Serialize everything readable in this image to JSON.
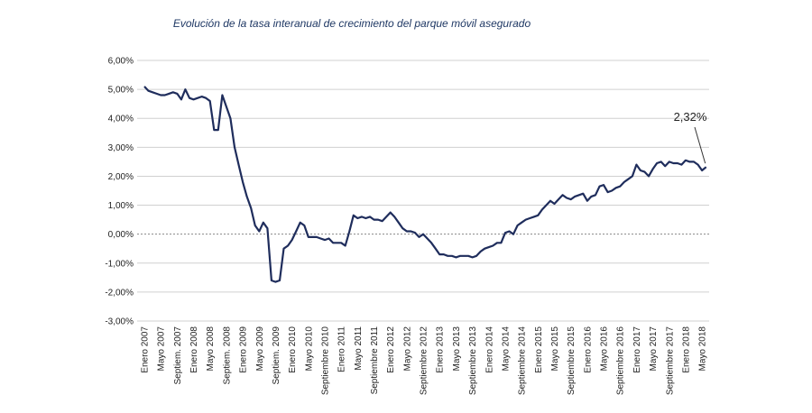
{
  "chart_data": {
    "type": "line",
    "title": "Evolución de la tasa interanual de crecimiento del parque móvil asegurado",
    "categories": [
      "Enero 2007",
      null,
      null,
      null,
      "Mayo 2007",
      null,
      null,
      null,
      "Septiem. 2007",
      null,
      null,
      null,
      "Enero 2008",
      null,
      null,
      null,
      "Mayo 2008",
      null,
      null,
      null,
      "Septiem. 2008",
      null,
      null,
      null,
      "Enero 2009",
      null,
      null,
      null,
      "Mayo 2009",
      null,
      null,
      null,
      "Septiem. 2009",
      null,
      null,
      null,
      "Enero 2010",
      null,
      null,
      null,
      "Mayo 2010",
      null,
      null,
      null,
      "Septiembre 2010",
      null,
      null,
      null,
      "Enero 2011",
      null,
      null,
      null,
      "Mayo 2011",
      null,
      null,
      null,
      "Septiembre 2011",
      null,
      null,
      null,
      "Enero 2012",
      null,
      null,
      null,
      "Mayo 2012",
      null,
      null,
      null,
      "Septiembre 2012",
      null,
      null,
      null,
      "Enero 2013",
      null,
      null,
      null,
      "Mayo 2013",
      null,
      null,
      null,
      "Septiembre 2013",
      null,
      null,
      null,
      "Enero 2014",
      null,
      null,
      null,
      "Mayo 2014",
      null,
      null,
      null,
      "Septiembre 2014",
      null,
      null,
      null,
      "Enero 2015",
      null,
      null,
      null,
      "Mayo 2015",
      null,
      null,
      null,
      "Septiembre 2015",
      null,
      null,
      null,
      "Enero 2016",
      null,
      null,
      null,
      "Mayo 2016",
      null,
      null,
      null,
      "Septiembre 2016",
      null,
      null,
      null,
      "Enero 2017",
      null,
      null,
      null,
      "Mayo 2017",
      null,
      null,
      null,
      "Septiembre 2017",
      null,
      null,
      null,
      "Enero 2018",
      null,
      null,
      null,
      "Mayo 2018",
      null
    ],
    "series": [
      {
        "name": "Tasa interanual",
        "color": "#1f2d5c",
        "values": [
          5.1,
          4.95,
          4.9,
          4.85,
          4.8,
          4.8,
          4.85,
          4.9,
          4.85,
          4.65,
          5.0,
          4.7,
          4.65,
          4.7,
          4.75,
          4.7,
          4.6,
          3.6,
          3.6,
          4.8,
          4.4,
          4.0,
          3.0,
          2.4,
          1.8,
          1.3,
          0.9,
          0.3,
          0.1,
          0.4,
          0.2,
          -1.6,
          -1.65,
          -1.6,
          -0.5,
          -0.4,
          -0.2,
          0.1,
          0.4,
          0.3,
          -0.1,
          -0.1,
          -0.1,
          -0.15,
          -0.2,
          -0.15,
          -0.3,
          -0.3,
          -0.3,
          -0.4,
          0.1,
          0.65,
          0.55,
          0.6,
          0.55,
          0.6,
          0.5,
          0.5,
          0.45,
          0.6,
          0.75,
          0.6,
          0.4,
          0.2,
          0.1,
          0.1,
          0.05,
          -0.1,
          0.0,
          -0.15,
          -0.3,
          -0.5,
          -0.7,
          -0.7,
          -0.75,
          -0.75,
          -0.8,
          -0.75,
          -0.75,
          -0.75,
          -0.8,
          -0.75,
          -0.6,
          -0.5,
          -0.45,
          -0.4,
          -0.3,
          -0.3,
          0.05,
          0.1,
          0.0,
          0.3,
          0.4,
          0.5,
          0.55,
          0.6,
          0.65,
          0.85,
          1.0,
          1.15,
          1.05,
          1.2,
          1.35,
          1.25,
          1.2,
          1.3,
          1.35,
          1.4,
          1.15,
          1.3,
          1.35,
          1.65,
          1.7,
          1.45,
          1.5,
          1.6,
          1.65,
          1.8,
          1.9,
          2.0,
          2.4,
          2.2,
          2.15,
          2.0,
          2.25,
          2.45,
          2.5,
          2.35,
          2.5,
          2.45,
          2.45,
          2.4,
          2.55,
          2.5,
          2.5,
          2.4,
          2.2,
          2.32
        ]
      }
    ],
    "ylim": [
      -3,
      6
    ],
    "yticks": [
      {
        "value": -3,
        "label": "-3,00%"
      },
      {
        "value": -2,
        "label": "-2,00%"
      },
      {
        "value": -1,
        "label": "-1,00%"
      },
      {
        "value": 0,
        "label": "0,00%"
      },
      {
        "value": 1,
        "label": "1,00%"
      },
      {
        "value": 2,
        "label": "2,00%"
      },
      {
        "value": 3,
        "label": "3,00%"
      },
      {
        "value": 4,
        "label": "4,00%"
      },
      {
        "value": 5,
        "label": "5,00%"
      },
      {
        "value": 6,
        "label": "6,00%"
      }
    ],
    "grid": true,
    "annotation": "2,32%"
  }
}
